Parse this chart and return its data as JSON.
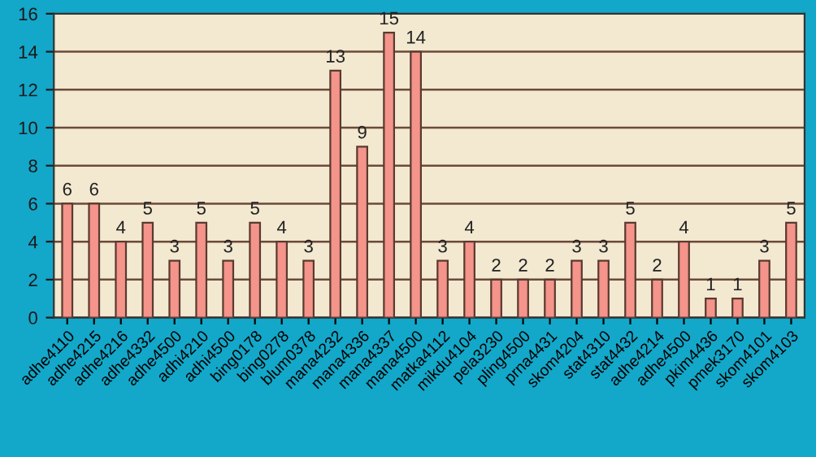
{
  "chart_data": {
    "type": "bar",
    "categories": [
      "adhe4110",
      "adhe4215",
      "adhe4216",
      "adhe4332",
      "adhe4500",
      "adhi4210",
      "adhi4500",
      "bing0178",
      "bing0278",
      "blum0378",
      "mana4232",
      "mana4336",
      "mana4337",
      "mana4500",
      "matka4112",
      "mikdu4104",
      "pela3230",
      "pling4500",
      "prna4431",
      "skom4204",
      "stat4310",
      "stat4432",
      "adhe4214",
      "adhe4500",
      "pkim4436",
      "pmek3170",
      "skom4101",
      "skom4103"
    ],
    "values": [
      6,
      6,
      4,
      5,
      3,
      5,
      3,
      5,
      4,
      3,
      13,
      9,
      15,
      14,
      3,
      4,
      2,
      2,
      2,
      3,
      3,
      5,
      2,
      4,
      1,
      1,
      3,
      5
    ],
    "color": "#f4948a",
    "ylim": [
      0,
      16
    ],
    "yticks": [
      0,
      2,
      4,
      6,
      8,
      10,
      12,
      14,
      16
    ],
    "grid": "y",
    "data_labels": true,
    "legend": false
  }
}
